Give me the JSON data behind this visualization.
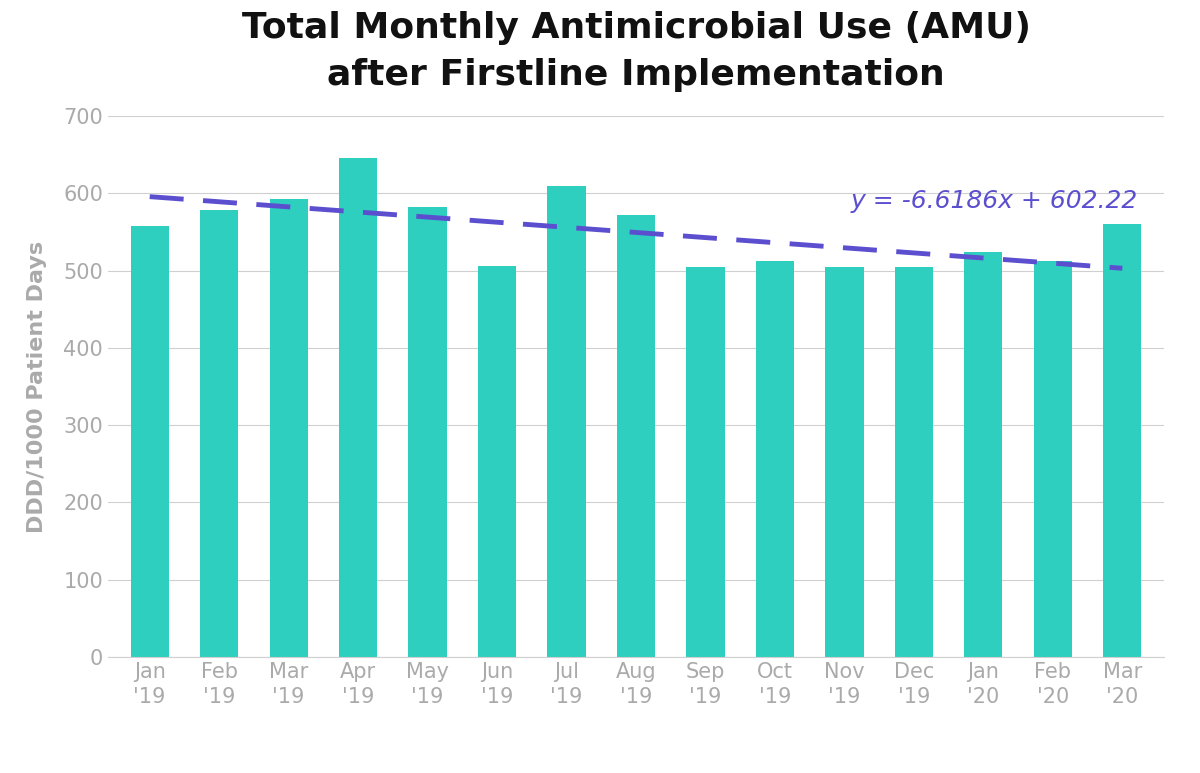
{
  "title_line1": "Total Monthly Antimicrobial Use (AMU)",
  "title_line2": "after Firstline Implementation",
  "categories": [
    "Jan\n'19",
    "Feb\n'19",
    "Mar\n'19",
    "Apr\n'19",
    "May\n'19",
    "Jun\n'19",
    "Jul\n'19",
    "Aug\n'19",
    "Sep\n'19",
    "Oct\n'19",
    "Nov\n'19",
    "Dec\n'19",
    "Jan\n'20",
    "Feb\n'20",
    "Mar\n'20"
  ],
  "values": [
    558,
    578,
    592,
    645,
    582,
    506,
    610,
    572,
    505,
    513,
    505,
    504,
    524,
    512,
    560
  ],
  "bar_color": "#2ecfbe",
  "trend_color": "#5b4fcf",
  "ylabel": "DDD/1000 Patient Days",
  "ylim": [
    0,
    700
  ],
  "yticks": [
    0,
    100,
    200,
    300,
    400,
    500,
    600,
    700
  ],
  "trend_equation": "y = -6.6186x + 602.22",
  "trend_slope": -6.6186,
  "trend_intercept": 602.22,
  "background_color": "#ffffff",
  "grid_color": "#d0d0d0",
  "title_fontsize": 26,
  "axis_label_fontsize": 16,
  "tick_fontsize": 15,
  "equation_fontsize": 18,
  "tick_color": "#aaaaaa",
  "bar_width": 0.55
}
